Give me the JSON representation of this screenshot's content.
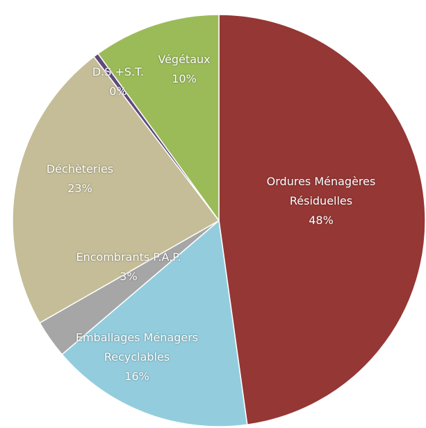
{
  "chart_data": {
    "type": "pie",
    "categories": [
      "Ordures Ménagères Résiduelles",
      "Emballages Ménagers Recyclables",
      "Encombrants P.A.P.",
      "Déchèteries",
      "D.S.+S.T.",
      "Végétaux"
    ],
    "values": [
      48,
      16,
      3,
      23,
      0.4,
      10
    ],
    "value_labels": [
      "48%",
      "16%",
      "3%",
      "23%",
      "0%",
      "10%"
    ],
    "colors": [
      "#953735",
      "#93cddd",
      "#a6a6a6",
      "#c4bd97",
      "#604a7b",
      "#9bbb59"
    ]
  }
}
